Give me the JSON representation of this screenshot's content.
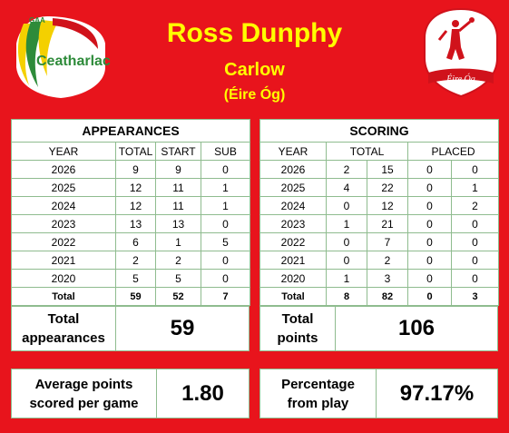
{
  "header": {
    "player_name": "Ross Dunphy",
    "county": "Carlow",
    "club": "(Éire Óg)",
    "left_logo_top": "GAA",
    "left_logo_text": "Ceatharlach",
    "right_logo_text": "Éire Óg"
  },
  "appearances": {
    "title": "APPEARANCES",
    "columns": [
      "YEAR",
      "TOTAL",
      "START",
      "SUB"
    ],
    "rows": [
      [
        "2026",
        "9",
        "9",
        "0"
      ],
      [
        "2025",
        "12",
        "11",
        "1"
      ],
      [
        "2024",
        "12",
        "11",
        "1"
      ],
      [
        "2023",
        "13",
        "13",
        "0"
      ],
      [
        "2022",
        "6",
        "1",
        "5"
      ],
      [
        "2021",
        "2",
        "2",
        "0"
      ],
      [
        "2020",
        "5",
        "5",
        "0"
      ]
    ],
    "total_row": [
      "Total",
      "59",
      "52",
      "7"
    ]
  },
  "scoring": {
    "title": "SCORING",
    "columns": [
      "YEAR",
      "TOTAL",
      "PLACED"
    ],
    "rows": [
      [
        "2026",
        "2",
        "15",
        "0",
        "0"
      ],
      [
        "2025",
        "4",
        "22",
        "0",
        "1"
      ],
      [
        "2024",
        "0",
        "12",
        "0",
        "2"
      ],
      [
        "2023",
        "1",
        "21",
        "0",
        "0"
      ],
      [
        "2022",
        "0",
        "7",
        "0",
        "0"
      ],
      [
        "2021",
        "0",
        "2",
        "0",
        "0"
      ],
      [
        "2020",
        "1",
        "3",
        "0",
        "0"
      ]
    ],
    "total_row": [
      "Total",
      "8",
      "82",
      "0",
      "3"
    ]
  },
  "summary": {
    "total_appearances_label_1": "Total",
    "total_appearances_label_2": "appearances",
    "total_appearances_value": "59",
    "total_points_label_1": "Total",
    "total_points_label_2": "points",
    "total_points_value": "106",
    "avg_label_1": "Average points",
    "avg_label_2": "scored per game",
    "avg_value": "1.80",
    "pct_label_1": "Percentage",
    "pct_label_2": "from play",
    "pct_value": "97.17%"
  },
  "colors": {
    "background": "#e8141c",
    "title_yellow": "#ffff00",
    "cell_border": "#8fbc8f",
    "crest_green": "#2e8b3a",
    "crest_yellow": "#f4d000",
    "crest_red": "#d0121b"
  }
}
